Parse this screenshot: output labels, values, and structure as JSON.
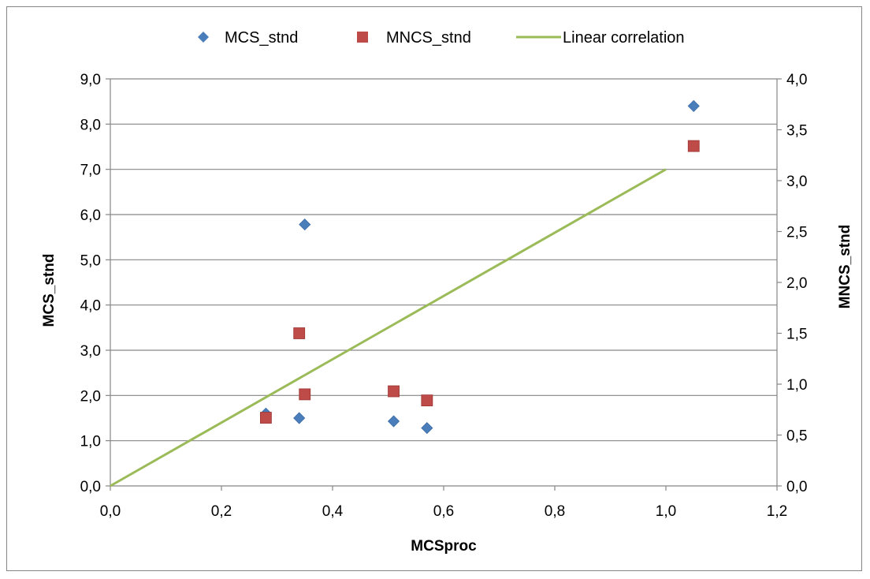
{
  "chart_data": {
    "type": "scatter",
    "title": "",
    "xlabel": "MCSproc",
    "ylabel": "MCS_stnd",
    "y2label": "MNCS_stnd",
    "xlim": [
      0,
      1.2
    ],
    "ylim": [
      0,
      9
    ],
    "y2lim": [
      0,
      4
    ],
    "x_ticks": [
      "0,0",
      "0,2",
      "0,4",
      "0,6",
      "0,8",
      "1,0",
      "1,2"
    ],
    "y_ticks": [
      "0,0",
      "1,0",
      "2,0",
      "3,0",
      "4,0",
      "5,0",
      "6,0",
      "7,0",
      "8,0",
      "9,0"
    ],
    "y2_ticks": [
      "0,0",
      "0,5",
      "1,0",
      "1,5",
      "2,0",
      "2,5",
      "3,0",
      "3,5",
      "4,0"
    ],
    "grid": "horizontal",
    "legend_position": "top",
    "series": [
      {
        "name": "MCS_stnd",
        "marker": "diamond",
        "color": "#4a7ebb",
        "axis": "left",
        "points": [
          [
            0.28,
            1.6
          ],
          [
            0.34,
            1.5
          ],
          [
            0.35,
            5.78
          ],
          [
            0.51,
            1.43
          ],
          [
            0.57,
            1.28
          ],
          [
            1.05,
            8.4
          ]
        ]
      },
      {
        "name": "MNCS_stnd",
        "marker": "square",
        "color": "#be4b48",
        "axis": "right",
        "points": [
          [
            0.28,
            0.67
          ],
          [
            0.34,
            1.5
          ],
          [
            0.35,
            0.9
          ],
          [
            0.51,
            0.93
          ],
          [
            0.57,
            0.84
          ],
          [
            1.05,
            3.34
          ]
        ]
      },
      {
        "name": "Linear correlation",
        "marker": "line",
        "color": "#9bbb59",
        "axis": "left",
        "points": [
          [
            0,
            0
          ],
          [
            1.0,
            7.0
          ]
        ]
      }
    ]
  }
}
